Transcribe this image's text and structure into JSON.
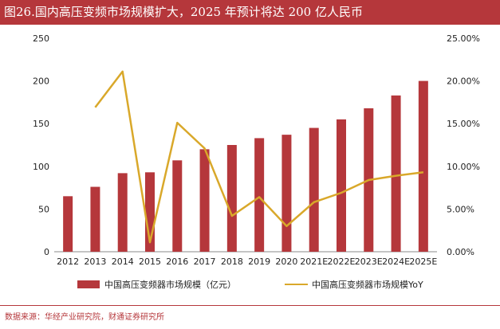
{
  "title": "图26.国内高压变频市场规模扩大，2025 年预计将达 200 亿人民币",
  "source": "数据来源：华经产业研究院，财通证券研究所",
  "colors": {
    "title_bg": "#b5373b",
    "bar": "#b5373b",
    "line": "#d9a82a",
    "axis": "#888888"
  },
  "chart_data": {
    "type": "bar",
    "categories": [
      "2012",
      "2013",
      "2014",
      "2015",
      "2016",
      "2017",
      "2018",
      "2019",
      "2020",
      "2021E",
      "2022E",
      "2023E",
      "2024E",
      "2025E"
    ],
    "series": [
      {
        "name": "中国高压变频器市场规模（亿元）",
        "type": "bar",
        "axis": "left",
        "values": [
          65,
          76,
          92,
          93,
          107,
          120,
          125,
          133,
          137,
          145,
          155,
          168,
          183,
          200
        ]
      },
      {
        "name": "中国高压变频器市场规模YoY",
        "type": "line",
        "axis": "right",
        "values": [
          null,
          16.9,
          21.1,
          1.1,
          15.1,
          12.1,
          4.2,
          6.4,
          3.0,
          5.8,
          6.9,
          8.4,
          8.9,
          9.3
        ]
      }
    ],
    "y_left": {
      "ylim": [
        0,
        250
      ],
      "ticks": [
        "0",
        "50",
        "100",
        "150",
        "200",
        "250"
      ]
    },
    "y_right": {
      "ylim": [
        0,
        25
      ],
      "ticks": [
        "0.00%",
        "5.00%",
        "10.00%",
        "15.00%",
        "20.00%",
        "25.00%"
      ]
    },
    "legend_placement": "bottom",
    "grid": false
  }
}
